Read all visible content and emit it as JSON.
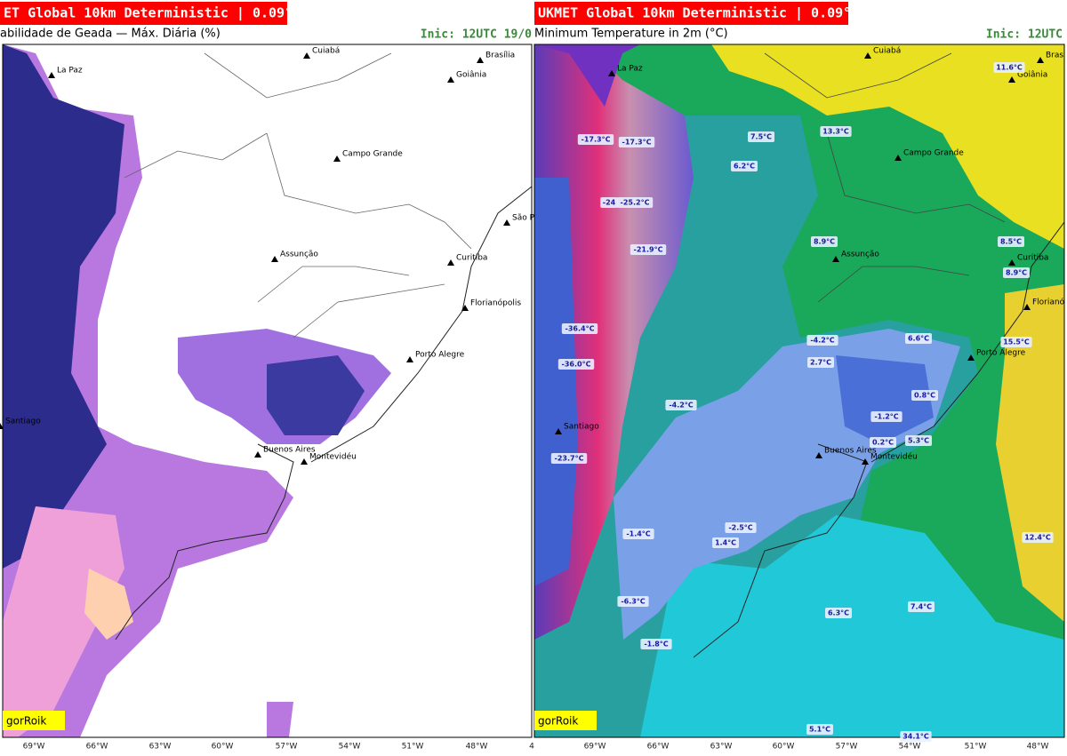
{
  "panels": [
    {
      "header": "ET Global 10km Deterministic | 0.09°",
      "subtitle": "abilidade de Geada — Máx. Diária (%)",
      "init": "Inic: 12UTC 19/0",
      "cities": [
        "La Paz",
        "Cuiabá",
        "Brasília",
        "Goiânia",
        "Campo Grande",
        "São P",
        "Assunção",
        "Curitiba",
        "Florianópolis",
        "Porto Alegre",
        "Santiago",
        "Buenos Aires",
        "Montevidéu"
      ],
      "watermark": "gorRoik",
      "x_ticks": [
        "69°W",
        "66°W",
        "63°W",
        "60°W",
        "57°W",
        "54°W",
        "51°W",
        "48°W",
        "4"
      ]
    },
    {
      "header": "UKMET Global 10km Deterministic | 0.09°",
      "subtitle": "Minimum Temperature in 2m (°C)",
      "init": "Inic: 12UTC",
      "cities": [
        "Cuiabá",
        "Bras",
        "La Paz",
        "Goiânia",
        "Campo Grande",
        "Assunção",
        "Curitiba",
        "Florianó",
        "Porto Alegre",
        "Santiago",
        "Buenos Aires",
        "Montevidéu"
      ],
      "temperature_labels": [
        "11.6°C",
        "7.5°C",
        "13.3°C",
        "-17.3°C",
        "-17.3°C",
        "6.2°C",
        "-24",
        "-25.2°C",
        "-21.9°C",
        "8.9°C",
        "8.5°C",
        "8.9°C",
        "-36.4°C",
        "-4.2°C",
        "6.6°C",
        "15.5°C",
        "2.7°C",
        "-36.0°C",
        "0.8°C",
        "-4.2°C",
        "-1.2°C",
        "0.2°C",
        "5.3°C",
        "-23.7°C",
        "-2.5°C",
        "-1.4°C",
        "1.4°C",
        "12.4°C",
        "-6.3°C",
        "6.3°C",
        "7.4°C",
        "-1.8°C",
        "5.1°C",
        "34.1°C"
      ],
      "watermark": "gorRoik",
      "x_ticks": [
        "69°W",
        "66°W",
        "63°W",
        "60°W",
        "57°W",
        "54°W",
        "51°W",
        "48°W"
      ]
    }
  ]
}
